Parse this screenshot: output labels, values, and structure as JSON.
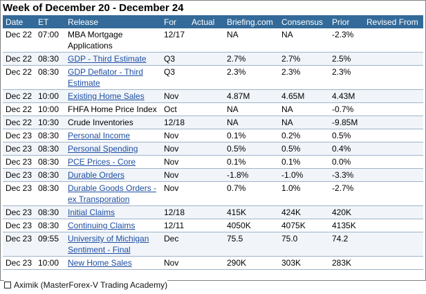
{
  "week_title": "Week of December 20 - December 24",
  "columns": {
    "date": "Date",
    "et": "ET",
    "release": "Release",
    "for": "For",
    "actual": "Actual",
    "briefing": "Briefing.com",
    "consensus": "Consensus",
    "prior": "Prior",
    "revised": "Revised From"
  },
  "rows": [
    {
      "date": "Dec 22",
      "et": "07:00",
      "release": "MBA Mortgage Applications",
      "link": false,
      "for": "12/17",
      "actual": "",
      "briefing": "NA",
      "consensus": "NA",
      "prior": "-2.3%",
      "revised": ""
    },
    {
      "date": "Dec 22",
      "et": "08:30",
      "release": "GDP - Third Estimate",
      "link": true,
      "for": "Q3",
      "actual": "",
      "briefing": "2.7%",
      "consensus": "2.7%",
      "prior": "2.5%",
      "revised": ""
    },
    {
      "date": "Dec 22",
      "et": "08:30",
      "release": "GDP Deflator - Third Estimate",
      "link": true,
      "for": "Q3",
      "actual": "",
      "briefing": "2.3%",
      "consensus": "2.3%",
      "prior": "2.3%",
      "revised": ""
    },
    {
      "date": "Dec 22",
      "et": "10:00",
      "release": "Existing Home Sales",
      "link": true,
      "for": "Nov",
      "actual": "",
      "briefing": "4.87M",
      "consensus": "4.65M",
      "prior": "4.43M",
      "revised": ""
    },
    {
      "date": "Dec 22",
      "et": "10:00",
      "release": "FHFA Home Price Index",
      "link": false,
      "for": "Oct",
      "actual": "",
      "briefing": "NA",
      "consensus": "NA",
      "prior": "-0.7%",
      "revised": ""
    },
    {
      "date": "Dec 22",
      "et": "10:30",
      "release": "Crude Inventories",
      "link": false,
      "for": "12/18",
      "actual": "",
      "briefing": "NA",
      "consensus": "NA",
      "prior": "-9.85M",
      "revised": ""
    },
    {
      "date": "Dec 23",
      "et": "08:30",
      "release": "Personal Income",
      "link": true,
      "for": "Nov",
      "actual": "",
      "briefing": "0.1%",
      "consensus": "0.2%",
      "prior": "0.5%",
      "revised": ""
    },
    {
      "date": "Dec 23",
      "et": "08:30",
      "release": "Personal Spending",
      "link": true,
      "for": "Nov",
      "actual": "",
      "briefing": "0.5%",
      "consensus": "0.5%",
      "prior": "0.4%",
      "revised": ""
    },
    {
      "date": "Dec 23",
      "et": "08:30",
      "release": "PCE Prices - Core",
      "link": true,
      "for": "Nov",
      "actual": "",
      "briefing": "0.1%",
      "consensus": "0.1%",
      "prior": "0.0%",
      "revised": ""
    },
    {
      "date": "Dec 23",
      "et": "08:30",
      "release": "Durable Orders",
      "link": true,
      "for": "Nov",
      "actual": "",
      "briefing": "-1.8%",
      "consensus": "-1.0%",
      "prior": "-3.3%",
      "revised": ""
    },
    {
      "date": "Dec 23",
      "et": "08:30",
      "release": "Durable Goods Orders - ex Transporation",
      "link": true,
      "for": "Nov",
      "actual": "",
      "briefing": "0.7%",
      "consensus": "1.0%",
      "prior": "-2.7%",
      "revised": ""
    },
    {
      "date": "Dec 23",
      "et": "08:30",
      "release": "Initial Claims",
      "link": true,
      "for": "12/18",
      "actual": "",
      "briefing": "415K",
      "consensus": "424K",
      "prior": "420K",
      "revised": ""
    },
    {
      "date": "Dec 23",
      "et": "08:30",
      "release": "Continuing Claims",
      "link": true,
      "for": "12/11",
      "actual": "",
      "briefing": "4050K",
      "consensus": "4075K",
      "prior": "4135K",
      "revised": ""
    },
    {
      "date": "Dec 23",
      "et": "09:55",
      "release": "University of Michigan Sentiment - Final",
      "link": true,
      "for": "Dec",
      "actual": "",
      "briefing": "75.5",
      "consensus": "75.0",
      "prior": "74.2",
      "revised": ""
    },
    {
      "date": "Dec 23",
      "et": "10:00",
      "release": "New Home Sales",
      "link": true,
      "for": "Nov",
      "actual": "",
      "briefing": "290K",
      "consensus": "303K",
      "prior": "283K",
      "revised": ""
    }
  ],
  "watermark": "Aximik (MasterForex-V Trading Academy)",
  "colors": {
    "header_bg": "#336a99",
    "link": "#1e4ea1",
    "alt_row": "#f1f5fa"
  }
}
